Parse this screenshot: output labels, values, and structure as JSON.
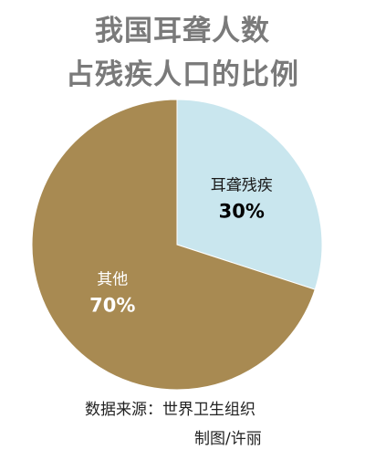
{
  "title_lines": [
    "我国耳聋人数",
    "占残疾人口的比例"
  ],
  "chart_data": {
    "type": "pie",
    "title": "我国耳聋人数占残疾人口的比例",
    "slices": [
      {
        "label": "耳聋残疾",
        "value": 30,
        "value_label": "30%",
        "color": "#c9e6ee"
      },
      {
        "label": "其他",
        "value": 70,
        "value_label": "70%",
        "color": "#a88a52"
      }
    ],
    "start": "12 o'clock",
    "direction": "clockwise",
    "legend": "none"
  },
  "footer": {
    "source": "数据来源：世界卫生组织",
    "credit": "制图/许丽"
  }
}
